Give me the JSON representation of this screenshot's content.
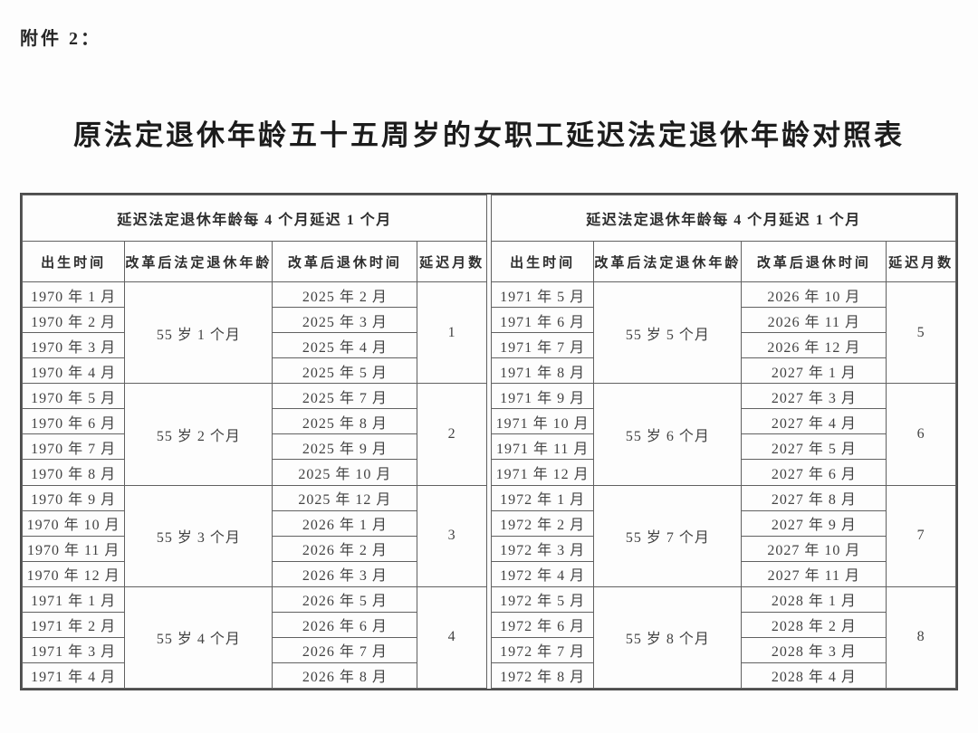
{
  "page": {
    "attachment_label": "附件 2：",
    "title": "原法定退休年龄五十五周岁的女职工延迟法定退休年龄对照表"
  },
  "table": {
    "group_header": "延迟法定退休年龄每 4 个月延迟 1 个月",
    "columns": [
      "出生时间",
      "改革后法定退休年龄",
      "改革后退休时间",
      "延迟月数"
    ],
    "left": {
      "groups": [
        {
          "retirement_age": "55 岁 1 个月",
          "delay_months": "1",
          "rows": [
            {
              "birth": "1970 年 1 月",
              "retire": "2025 年 2 月"
            },
            {
              "birth": "1970 年 2 月",
              "retire": "2025 年 3 月"
            },
            {
              "birth": "1970 年 3 月",
              "retire": "2025 年 4 月"
            },
            {
              "birth": "1970 年 4 月",
              "retire": "2025 年 5 月"
            }
          ]
        },
        {
          "retirement_age": "55 岁 2 个月",
          "delay_months": "2",
          "rows": [
            {
              "birth": "1970 年 5 月",
              "retire": "2025 年 7 月"
            },
            {
              "birth": "1970 年 6 月",
              "retire": "2025 年 8 月"
            },
            {
              "birth": "1970 年 7 月",
              "retire": "2025 年 9 月"
            },
            {
              "birth": "1970 年 8 月",
              "retire": "2025 年 10 月"
            }
          ]
        },
        {
          "retirement_age": "55 岁 3 个月",
          "delay_months": "3",
          "rows": [
            {
              "birth": "1970 年 9 月",
              "retire": "2025 年 12 月"
            },
            {
              "birth": "1970 年 10 月",
              "retire": "2026 年 1 月"
            },
            {
              "birth": "1970 年 11 月",
              "retire": "2026 年 2 月"
            },
            {
              "birth": "1970 年 12 月",
              "retire": "2026 年 3 月"
            }
          ]
        },
        {
          "retirement_age": "55 岁 4 个月",
          "delay_months": "4",
          "rows": [
            {
              "birth": "1971 年 1 月",
              "retire": "2026 年 5 月"
            },
            {
              "birth": "1971 年 2 月",
              "retire": "2026 年 6 月"
            },
            {
              "birth": "1971 年 3 月",
              "retire": "2026 年 7 月"
            },
            {
              "birth": "1971 年 4 月",
              "retire": "2026 年 8 月"
            }
          ]
        }
      ]
    },
    "right": {
      "groups": [
        {
          "retirement_age": "55 岁 5 个月",
          "delay_months": "5",
          "rows": [
            {
              "birth": "1971 年 5 月",
              "retire": "2026 年 10 月"
            },
            {
              "birth": "1971 年 6 月",
              "retire": "2026 年 11 月"
            },
            {
              "birth": "1971 年 7 月",
              "retire": "2026 年 12 月"
            },
            {
              "birth": "1971 年 8 月",
              "retire": "2027 年 1 月"
            }
          ]
        },
        {
          "retirement_age": "55 岁 6 个月",
          "delay_months": "6",
          "rows": [
            {
              "birth": "1971 年 9 月",
              "retire": "2027 年 3 月"
            },
            {
              "birth": "1971 年 10 月",
              "retire": "2027 年 4 月"
            },
            {
              "birth": "1971 年 11 月",
              "retire": "2027 年 5 月"
            },
            {
              "birth": "1971 年 12 月",
              "retire": "2027 年 6 月"
            }
          ]
        },
        {
          "retirement_age": "55 岁 7 个月",
          "delay_months": "7",
          "rows": [
            {
              "birth": "1972 年 1 月",
              "retire": "2027 年 8 月"
            },
            {
              "birth": "1972 年 2 月",
              "retire": "2027 年 9 月"
            },
            {
              "birth": "1972 年 3 月",
              "retire": "2027 年 10 月"
            },
            {
              "birth": "1972 年 4 月",
              "retire": "2027 年 11 月"
            }
          ]
        },
        {
          "retirement_age": "55 岁 8 个月",
          "delay_months": "8",
          "rows": [
            {
              "birth": "1972 年 5 月",
              "retire": "2028 年 1 月"
            },
            {
              "birth": "1972 年 6 月",
              "retire": "2028 年 2 月"
            },
            {
              "birth": "1972 年 7 月",
              "retire": "2028 年 3 月"
            },
            {
              "birth": "1972 年 8 月",
              "retire": "2028 年 4 月"
            }
          ]
        }
      ]
    }
  }
}
